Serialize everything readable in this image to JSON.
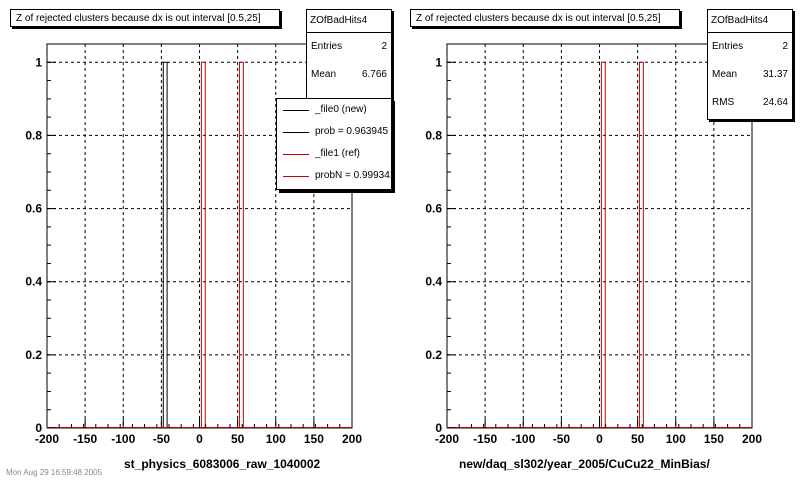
{
  "chart_data": [
    {
      "type": "bar",
      "title": "Z of rejected clusters  because dx is out interval [0.5,25]",
      "xlabel": "st_physics_6083006_raw_1040002",
      "ylabel": "",
      "xlim": [
        -200,
        200
      ],
      "ylim": [
        0,
        1.05
      ],
      "xticks": [
        -200,
        -150,
        -100,
        -50,
        0,
        50,
        100,
        150,
        200
      ],
      "yticks": [
        0,
        0.2,
        0.4,
        0.6,
        0.8,
        1
      ],
      "grid": true,
      "bin_width": 5,
      "series": [
        {
          "name": "_file0 (new)",
          "color": "#000000",
          "bins": [
            {
              "x": -45,
              "value": 1
            }
          ]
        },
        {
          "name": "_file1 (ref)",
          "color": "#cc0000",
          "bins": [
            {
              "x": 5,
              "value": 1
            },
            {
              "x": 55,
              "value": 1
            }
          ]
        }
      ],
      "stats": {
        "name": "ZOfBadHits4",
        "rows": [
          {
            "label": "Entries",
            "value": "2"
          },
          {
            "label": "Mean",
            "value": "6.766"
          }
        ]
      },
      "legend": {
        "placement": "top-right",
        "entries": [
          {
            "label": "_file0 (new)",
            "color": "#000000"
          },
          {
            "label": "prob = 0.963945",
            "color": "#000000"
          },
          {
            "label": "_file1 (ref)",
            "color": "#cc0000"
          },
          {
            "label": "probN = 0.999341",
            "color": "#cc0000"
          }
        ]
      }
    },
    {
      "type": "bar",
      "title": "Z of rejected clusters  because dx is out interval [0.5,25]",
      "xlabel": "new/daq_sl302/year_2005/CuCu22_MinBias/",
      "ylabel": "",
      "xlim": [
        -200,
        200
      ],
      "ylim": [
        0,
        1.05
      ],
      "xticks": [
        -200,
        -150,
        -100,
        -50,
        0,
        50,
        100,
        150,
        200
      ],
      "yticks": [
        0,
        0.2,
        0.4,
        0.6,
        0.8,
        1
      ],
      "grid": true,
      "bin_width": 5,
      "series": [
        {
          "name": "",
          "color": "#cc0000",
          "bins": [
            {
              "x": 5,
              "value": 1
            },
            {
              "x": 55,
              "value": 1
            }
          ]
        }
      ],
      "stats": {
        "name": "ZOfBadHits4",
        "rows": [
          {
            "label": "Entries",
            "value": "2"
          },
          {
            "label": "Mean",
            "value": "31.37"
          },
          {
            "label": "RMS",
            "value": "24.64"
          }
        ]
      }
    }
  ],
  "footer": "Mon Aug 29 16:59:48 2005"
}
